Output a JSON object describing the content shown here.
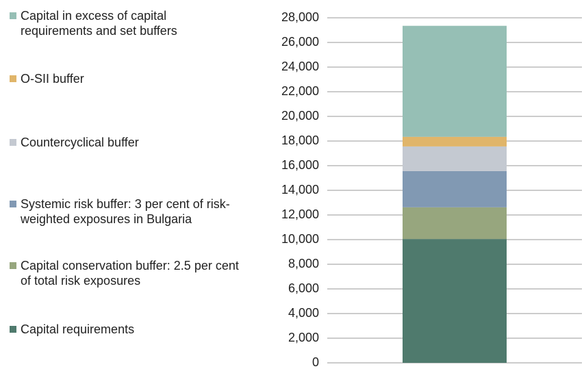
{
  "chart_data": {
    "type": "stacked_bar",
    "categories": [
      null
    ],
    "series": [
      {
        "name": "Capital requirements",
        "color": "#4f7a6d",
        "values": [
          10050
        ]
      },
      {
        "name": "Capital conservation buffer: 2.5 per cent of total risk exposures",
        "color": "#97a67e",
        "values": [
          2570
        ]
      },
      {
        "name": "Systemic risk buffer: 3 per cent of risk-weighted exposures in Bulgaria",
        "color": "#8199b3",
        "values": [
          2940
        ]
      },
      {
        "name": "Countercyclical buffer",
        "color": "#c4c9d1",
        "values": [
          2000
        ]
      },
      {
        "name": "O-SII buffer",
        "color": "#e0b56a",
        "values": [
          780
        ]
      },
      {
        "name": "Capital in excess of capital requirements and set buffers",
        "color": "#96bfb5",
        "values": [
          9010
        ]
      }
    ],
    "ylim": [
      0,
      28000
    ],
    "yticks": [
      0,
      {
        "value": 2000,
        "label": "2,000"
      },
      {
        "value": 4000,
        "label": "4,000"
      },
      {
        "value": 6000,
        "label": "6,000"
      },
      {
        "value": 8000,
        "label": "8,000"
      },
      {
        "value": 10000,
        "label": "10,000"
      },
      {
        "value": 12000,
        "label": "12,000"
      },
      {
        "value": 14000,
        "label": "14,000"
      },
      {
        "value": 16000,
        "label": "16,000"
      },
      {
        "value": 18000,
        "label": "18,000"
      },
      {
        "value": 20000,
        "label": "20,000"
      },
      {
        "value": 22000,
        "label": "22,000"
      },
      {
        "value": 24000,
        "label": "24,000"
      },
      {
        "value": 26000,
        "label": "26,000"
      },
      {
        "value": 28000,
        "label": "28,000"
      }
    ],
    "grid": true,
    "legend": "left"
  }
}
